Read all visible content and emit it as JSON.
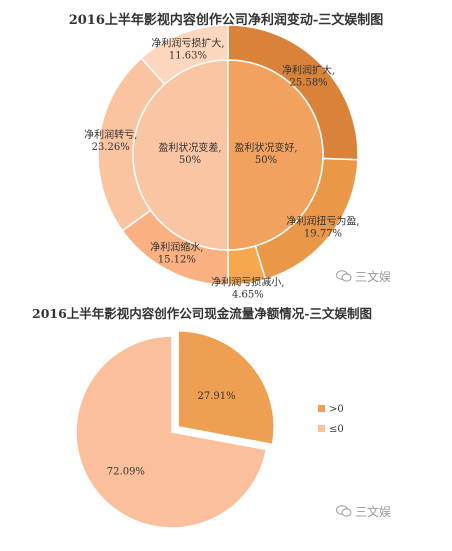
{
  "chart_data": [
    {
      "type": "pie",
      "title": "2016上半年影视内容创作公司净利润变动-三文娱制图",
      "inner": [
        {
          "label": "盈利状况变差,",
          "value": "50%",
          "percent": 50,
          "color": "#f9c5a2"
        },
        {
          "label": "盈利状况变好,",
          "value": "50%",
          "percent": 50,
          "color": "#f2a25e"
        }
      ],
      "outer": [
        {
          "label": "净利润扩大,",
          "value": "25.58%",
          "percent": 25.58,
          "color": "#d9823a"
        },
        {
          "label": "净利润扭亏为盈,",
          "value": "19.77%",
          "percent": 19.77,
          "color": "#eb9748"
        },
        {
          "label": "净利润亏损减小,",
          "value": "4.65%",
          "percent": 4.65,
          "color": "#f6a64d"
        },
        {
          "label": "净利润缩水,",
          "value": "15.12%",
          "percent": 15.12,
          "color": "#fab080"
        },
        {
          "label": "净利润转亏,",
          "value": "23.26%",
          "percent": 23.26,
          "color": "#fbc4a1"
        },
        {
          "label": "净利润亏损扩大,",
          "value": "11.63%",
          "percent": 11.63,
          "color": "#fcd7bd"
        }
      ]
    },
    {
      "type": "pie",
      "title": "2016上半年影视内容创作公司现金流量净额情况-三文娱制图",
      "slices": [
        {
          "label": ">0",
          "value": "27.91%",
          "percent": 27.91,
          "color": "#ee9f52"
        },
        {
          "label": "≤0",
          "value": "72.09%",
          "percent": 72.09,
          "color": "#fbc09b"
        }
      ],
      "legend_position": "right"
    }
  ],
  "watermark": "三文娱"
}
